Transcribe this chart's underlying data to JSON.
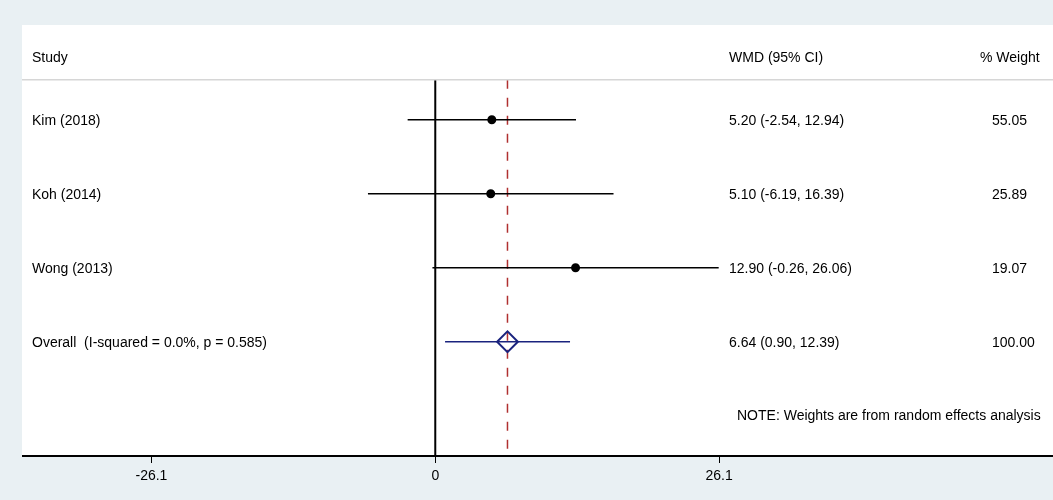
{
  "chart_data": {
    "type": "scatter",
    "orientation": "horizontal",
    "categories": [
      "Kim (2018)",
      "Koh (2014)",
      "Wong (2013)",
      "Overall  (I-squared = 0.0%, p = 0.585)"
    ],
    "series": [
      {
        "color": "#000000",
        "marker": "circle",
        "values": [
          5.2,
          5.1,
          12.9,
          null
        ],
        "errors": [
          [
            -2.54,
            12.94
          ],
          [
            -6.19,
            16.39
          ],
          [
            -0.26,
            26.06
          ],
          null
        ]
      },
      {
        "color": "#1a237e",
        "marker": "diamond",
        "values": [
          null,
          null,
          null,
          6.64
        ],
        "errors": [
          null,
          null,
          null,
          [
            0.9,
            12.39
          ]
        ]
      }
    ],
    "xlim": [
      -38,
      56.8
    ],
    "xticks": [
      -26.1,
      0,
      26.1
    ],
    "ref_lines": [
      {
        "axis": "x",
        "value": 0,
        "color": "#000000",
        "line_style": "solid"
      },
      {
        "axis": "x",
        "value": 6.64,
        "color": "#b03030",
        "line_style": "dashed"
      }
    ],
    "annotations": [
      "Study",
      "WMD (95% CI)",
      "% Weight",
      "5.20 (-2.54, 12.94)",
      "55.05",
      "5.10 (-6.19, 16.39)",
      "25.89",
      "12.90 (-0.26, 26.06)",
      "19.07",
      "6.64 (0.90, 12.39)",
      "100.00",
      "NOTE: Weights are from random effects analysis"
    ],
    "grid": false
  }
}
